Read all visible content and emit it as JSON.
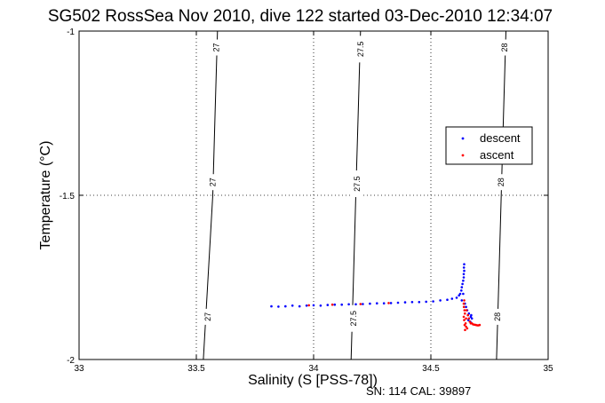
{
  "chart_data": {
    "type": "scatter",
    "title": "SG502 RossSea Nov 2010, dive 122 started 03-Dec-2010 12:34:07",
    "xlabel": "Salinity (S [PSS-78])",
    "ylabel": "Temperature (°C)",
    "footer": "SN: 114  CAL: 39897",
    "xlim": [
      33,
      35
    ],
    "ylim": [
      -2,
      -1
    ],
    "xticks": [
      33,
      33.5,
      34,
      34.5,
      35
    ],
    "yticks": [
      -2,
      -1.5,
      -1
    ],
    "xtick_labels": [
      "33",
      "33.5",
      "34",
      "34.5",
      "35"
    ],
    "ytick_labels": [
      "-2",
      "-1.5",
      "-1"
    ],
    "grid": true,
    "legend_position": "right",
    "colors": {
      "descent": "#0000ff",
      "ascent": "#ff0000",
      "contour": "#000000"
    },
    "contours": [
      {
        "label": "27",
        "points": [
          [
            33.53,
            -2.0
          ],
          [
            33.55,
            -1.75
          ],
          [
            33.57,
            -1.5
          ],
          [
            33.58,
            -1.25
          ],
          [
            33.59,
            -1.0
          ]
        ]
      },
      {
        "label": "27.5",
        "points": [
          [
            34.16,
            -2.0
          ],
          [
            34.17,
            -1.75
          ],
          [
            34.18,
            -1.5
          ],
          [
            34.19,
            -1.25
          ],
          [
            34.2,
            -1.0
          ]
        ]
      },
      {
        "label": "28",
        "points": [
          [
            34.78,
            -2.0
          ],
          [
            34.79,
            -1.75
          ],
          [
            34.8,
            -1.5
          ],
          [
            34.81,
            -1.25
          ],
          [
            34.82,
            -1.0
          ]
        ]
      }
    ],
    "contour_labels": [
      {
        "text": "27",
        "x": 33.585,
        "y": -1.05
      },
      {
        "text": "27",
        "x": 33.57,
        "y": -1.46
      },
      {
        "text": "27",
        "x": 33.55,
        "y": -1.87
      },
      {
        "text": "27.5",
        "x": 34.2,
        "y": -1.055
      },
      {
        "text": "27.5",
        "x": 34.185,
        "y": -1.465
      },
      {
        "text": "27.5",
        "x": 34.17,
        "y": -1.875
      },
      {
        "text": "28",
        "x": 34.815,
        "y": -1.05
      },
      {
        "text": "28",
        "x": 34.8,
        "y": -1.46
      },
      {
        "text": "28",
        "x": 34.785,
        "y": -1.87
      }
    ],
    "series": [
      {
        "name": "descent",
        "color": "#0000ff",
        "points": [
          [
            33.82,
            -1.838
          ],
          [
            33.85,
            -1.839
          ],
          [
            33.88,
            -1.838
          ],
          [
            33.91,
            -1.836
          ],
          [
            33.94,
            -1.838
          ],
          [
            33.97,
            -1.836
          ],
          [
            34.0,
            -1.835
          ],
          [
            34.03,
            -1.836
          ],
          [
            34.06,
            -1.834
          ],
          [
            34.09,
            -1.833
          ],
          [
            34.12,
            -1.833
          ],
          [
            34.15,
            -1.832
          ],
          [
            34.18,
            -1.832
          ],
          [
            34.21,
            -1.831
          ],
          [
            34.24,
            -1.83
          ],
          [
            34.27,
            -1.829
          ],
          [
            34.3,
            -1.829
          ],
          [
            34.33,
            -1.828
          ],
          [
            34.36,
            -1.827
          ],
          [
            34.39,
            -1.826
          ],
          [
            34.42,
            -1.825
          ],
          [
            34.45,
            -1.825
          ],
          [
            34.48,
            -1.824
          ],
          [
            34.51,
            -1.823
          ],
          [
            34.54,
            -1.82
          ],
          [
            34.57,
            -1.818
          ],
          [
            34.59,
            -1.815
          ],
          [
            34.61,
            -1.812
          ],
          [
            34.62,
            -1.805
          ],
          [
            34.625,
            -1.8
          ],
          [
            34.63,
            -1.79
          ],
          [
            34.632,
            -1.78
          ],
          [
            34.635,
            -1.77
          ],
          [
            34.638,
            -1.76
          ],
          [
            34.64,
            -1.75
          ],
          [
            34.64,
            -1.74
          ],
          [
            34.642,
            -1.73
          ],
          [
            34.641,
            -1.72
          ],
          [
            34.642,
            -1.71
          ],
          [
            34.638,
            -1.8
          ],
          [
            34.632,
            -1.82
          ],
          [
            34.645,
            -1.83
          ],
          [
            34.65,
            -1.84
          ],
          [
            34.655,
            -1.85
          ],
          [
            34.662,
            -1.86
          ],
          [
            34.67,
            -1.87
          ],
          [
            34.675,
            -1.875
          ],
          [
            34.66,
            -1.88
          ],
          [
            34.668,
            -1.885
          ],
          [
            34.672,
            -1.865
          ]
        ]
      },
      {
        "name": "ascent",
        "color": "#ff0000",
        "points": [
          [
            34.642,
            -1.82
          ],
          [
            34.64,
            -1.83
          ],
          [
            34.641,
            -1.84
          ],
          [
            34.643,
            -1.85
          ],
          [
            34.645,
            -1.86
          ],
          [
            34.64,
            -1.87
          ],
          [
            34.642,
            -1.88
          ],
          [
            34.648,
            -1.89
          ],
          [
            34.644,
            -1.895
          ],
          [
            34.65,
            -1.9
          ],
          [
            34.655,
            -1.905
          ],
          [
            34.65,
            -1.875
          ],
          [
            34.658,
            -1.865
          ],
          [
            34.662,
            -1.875
          ],
          [
            34.666,
            -1.885
          ],
          [
            34.67,
            -1.89
          ],
          [
            34.675,
            -1.89
          ],
          [
            34.68,
            -1.893
          ],
          [
            34.686,
            -1.894
          ],
          [
            34.692,
            -1.895
          ],
          [
            34.698,
            -1.896
          ],
          [
            34.703,
            -1.896
          ],
          [
            34.708,
            -1.895
          ],
          [
            34.652,
            -1.85
          ],
          [
            34.646,
            -1.91
          ],
          [
            33.98,
            -1.835
          ],
          [
            34.08,
            -1.833
          ],
          [
            34.2,
            -1.831
          ],
          [
            34.32,
            -1.828
          ]
        ]
      }
    ]
  }
}
